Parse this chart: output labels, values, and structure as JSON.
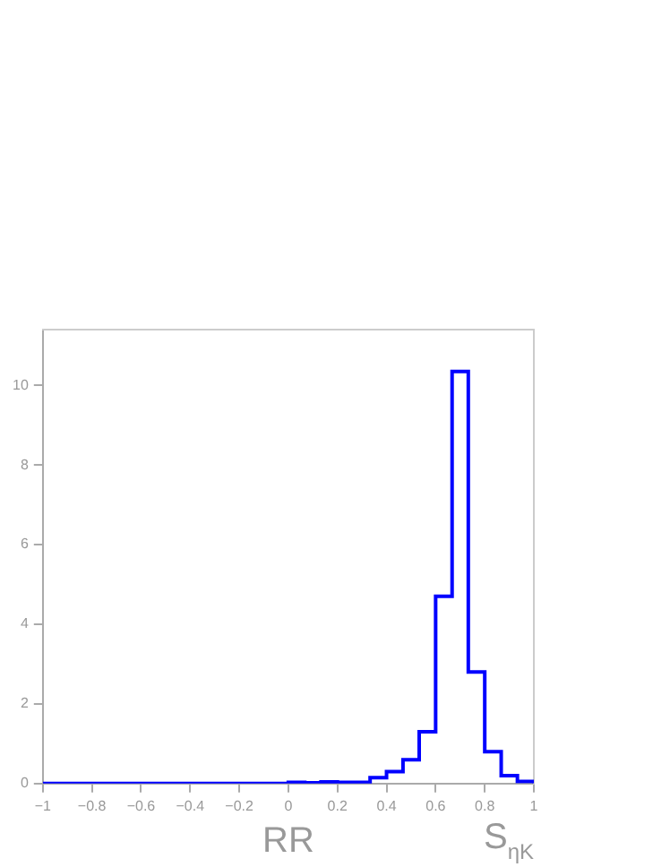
{
  "chart_data": {
    "type": "histogram",
    "xlabel": "S$_{ηK}$",
    "annotations": [
      "RR"
    ],
    "bins": [
      -1,
      -0.933,
      -0.867,
      -0.8,
      -0.733,
      -0.667,
      -0.6,
      -0.533,
      -0.467,
      -0.4,
      -0.333,
      -0.267,
      -0.2,
      -0.133,
      -0.067,
      0,
      0.067,
      0.133,
      0.2,
      0.267,
      0.333,
      0.4,
      0.467,
      0.533,
      0.6,
      0.667,
      0.733,
      0.8,
      0.867,
      0.933,
      1
    ],
    "values": [
      0,
      0,
      0,
      0,
      0,
      0,
      0,
      0,
      0,
      0,
      0,
      0,
      0,
      0,
      0,
      0.03,
      0.02,
      0.04,
      0.03,
      0.03,
      0.15,
      0.3,
      0.6,
      1.3,
      4.7,
      10.35,
      2.8,
      0.8,
      0.2,
      0.05
    ],
    "color": "#0000ff",
    "xlim": [
      -1,
      1
    ],
    "xticks": [
      -1,
      -0.8,
      -0.6,
      -0.4,
      -0.2,
      0,
      0.2,
      0.4,
      0.6,
      0.8,
      1
    ],
    "ylim": [
      0,
      11.4
    ],
    "yticks": [
      0,
      2,
      4,
      6,
      8,
      10
    ],
    "grid": false,
    "legend": false
  }
}
